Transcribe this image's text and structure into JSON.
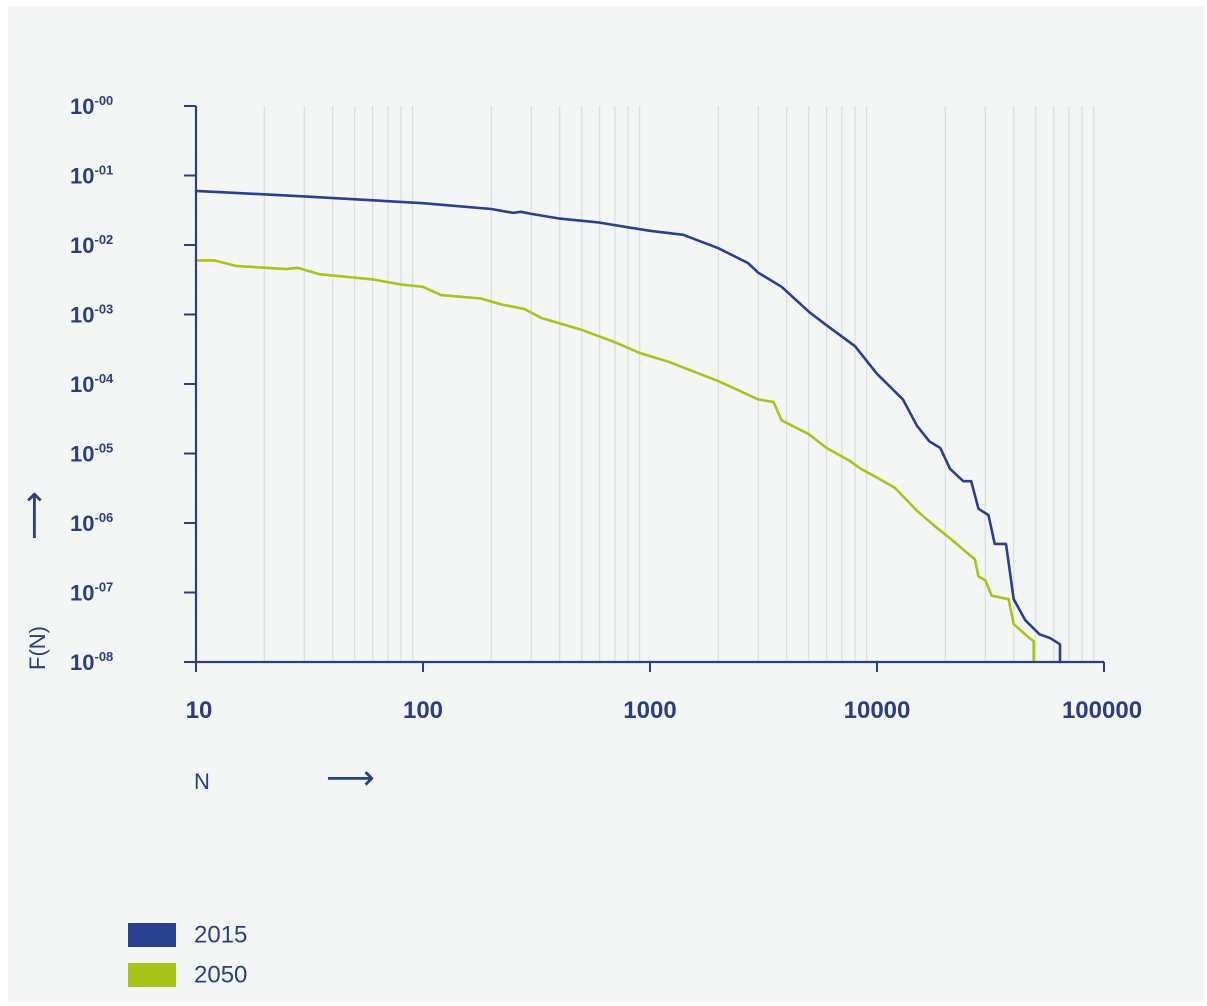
{
  "chart_data": {
    "type": "line",
    "xlabel": "N",
    "ylabel": "F(N)",
    "x_arrow": "⟶",
    "y_arrow": "⟶",
    "xscale": "log",
    "yscale": "log",
    "xlim": [
      10,
      100000
    ],
    "ylim": [
      1e-08,
      1
    ],
    "grid": "vertical minor log gridlines",
    "x_ticks": [
      {
        "value": 10,
        "label": "10"
      },
      {
        "value": 100,
        "label": "100"
      },
      {
        "value": 1000,
        "label": "1000"
      },
      {
        "value": 10000,
        "label": "10000"
      },
      {
        "value": 100000,
        "label": "100000"
      }
    ],
    "y_ticks": [
      {
        "value": 1,
        "base": "10",
        "exp": "-00"
      },
      {
        "value": 0.1,
        "base": "10",
        "exp": "-01"
      },
      {
        "value": 0.01,
        "base": "10",
        "exp": "-02"
      },
      {
        "value": 0.001,
        "base": "10",
        "exp": "-03"
      },
      {
        "value": 0.0001,
        "base": "10",
        "exp": "-04"
      },
      {
        "value": 1e-05,
        "base": "10",
        "exp": "-05"
      },
      {
        "value": 1e-06,
        "base": "10",
        "exp": "-06"
      },
      {
        "value": 1e-07,
        "base": "10",
        "exp": "-07"
      },
      {
        "value": 1e-08,
        "base": "10",
        "exp": "-08"
      }
    ],
    "legend_position": "bottom-left",
    "series": [
      {
        "name": "2015",
        "color": "#2a3f8f",
        "points": [
          [
            10,
            0.06
          ],
          [
            30,
            0.05
          ],
          [
            100,
            0.04
          ],
          [
            200,
            0.033
          ],
          [
            250,
            0.029
          ],
          [
            270,
            0.03
          ],
          [
            300,
            0.028
          ],
          [
            400,
            0.024
          ],
          [
            600,
            0.021
          ],
          [
            800,
            0.018
          ],
          [
            1000,
            0.016
          ],
          [
            1400,
            0.014
          ],
          [
            2000,
            0.009
          ],
          [
            2700,
            0.0055
          ],
          [
            3000,
            0.004
          ],
          [
            3800,
            0.0025
          ],
          [
            5000,
            0.0011
          ],
          [
            6000,
            0.0007
          ],
          [
            8000,
            0.00035
          ],
          [
            10000,
            0.00014
          ],
          [
            13000,
            6e-05
          ],
          [
            15000,
            2.5e-05
          ],
          [
            17000,
            1.5e-05
          ],
          [
            19000,
            1.2e-05
          ],
          [
            21000,
            6e-06
          ],
          [
            24000,
            4e-06
          ],
          [
            26000,
            4e-06
          ],
          [
            28000,
            1.6e-06
          ],
          [
            31000,
            1.3e-06
          ],
          [
            33000,
            5e-07
          ],
          [
            37000,
            5e-07
          ],
          [
            40000,
            8e-08
          ],
          [
            45000,
            4e-08
          ],
          [
            52000,
            2.5e-08
          ],
          [
            58000,
            2.2e-08
          ],
          [
            64000,
            1.8e-08
          ],
          [
            64000,
            1e-08
          ]
        ]
      },
      {
        "name": "2050",
        "color": "#a8c41a",
        "points": [
          [
            10,
            0.006
          ],
          [
            12,
            0.006
          ],
          [
            15,
            0.005
          ],
          [
            25,
            0.0045
          ],
          [
            28,
            0.0047
          ],
          [
            35,
            0.0038
          ],
          [
            60,
            0.0032
          ],
          [
            80,
            0.0027
          ],
          [
            100,
            0.0025
          ],
          [
            120,
            0.0019
          ],
          [
            180,
            0.0017
          ],
          [
            220,
            0.0014
          ],
          [
            280,
            0.0012
          ],
          [
            330,
            0.0009
          ],
          [
            500,
            0.0006
          ],
          [
            700,
            0.0004
          ],
          [
            900,
            0.00028
          ],
          [
            1200,
            0.00021
          ],
          [
            2000,
            0.00011
          ],
          [
            3000,
            6e-05
          ],
          [
            3500,
            5.5e-05
          ],
          [
            3800,
            3e-05
          ],
          [
            5000,
            1.9e-05
          ],
          [
            6000,
            1.2e-05
          ],
          [
            7500,
            8e-06
          ],
          [
            8500,
            6e-06
          ],
          [
            10000,
            4.5e-06
          ],
          [
            12000,
            3.2e-06
          ],
          [
            15000,
            1.5e-06
          ],
          [
            18000,
            9e-07
          ],
          [
            21000,
            6e-07
          ],
          [
            25000,
            3.7e-07
          ],
          [
            27000,
            3e-07
          ],
          [
            28000,
            1.7e-07
          ],
          [
            30000,
            1.5e-07
          ],
          [
            32000,
            9e-08
          ],
          [
            38000,
            8e-08
          ],
          [
            40000,
            3.5e-08
          ],
          [
            47000,
            2.2e-08
          ],
          [
            49000,
            2e-08
          ],
          [
            49000,
            1e-08
          ]
        ]
      }
    ]
  }
}
